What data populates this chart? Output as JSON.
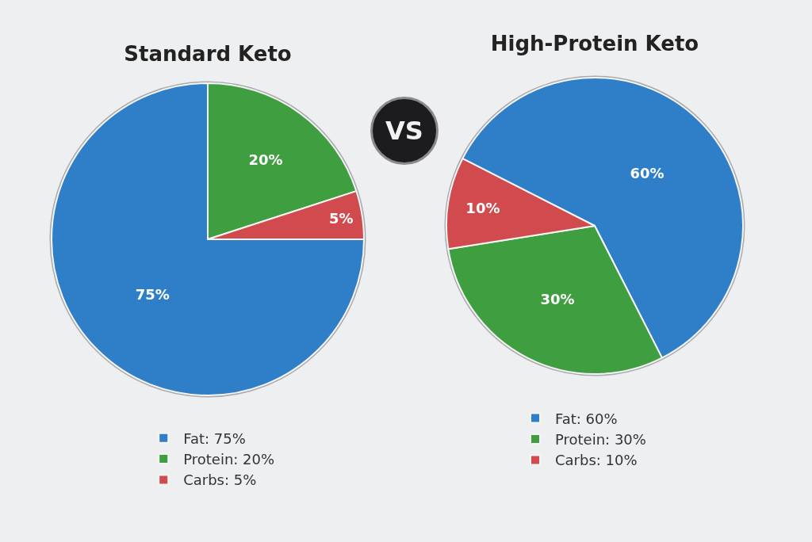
{
  "chart_data": [
    {
      "type": "pie",
      "title": "Standard Keto",
      "categories": [
        "Fat: 75%",
        "Protein: 20%",
        "Carbs: 5%"
      ],
      "values": [
        75,
        20,
        5
      ],
      "value_labels": [
        "75%",
        "20%",
        "5%"
      ],
      "colors": [
        "#2f7fc8",
        "#3f9f40",
        "#d04a4e"
      ],
      "legend": "bottom"
    },
    {
      "type": "other",
      "annotations": [
        "VS"
      ]
    },
    {
      "type": "pie",
      "title": "High-Protein Keto",
      "categories": [
        "Fat: 60%",
        "Protein: 30%",
        "Carbs: 10%"
      ],
      "values": [
        60,
        30,
        10
      ],
      "value_labels": [
        "60%",
        "30%",
        "10%"
      ],
      "colors": [
        "#2f7fc8",
        "#3f9f40",
        "#d04a4e"
      ],
      "legend": "bottom"
    }
  ]
}
